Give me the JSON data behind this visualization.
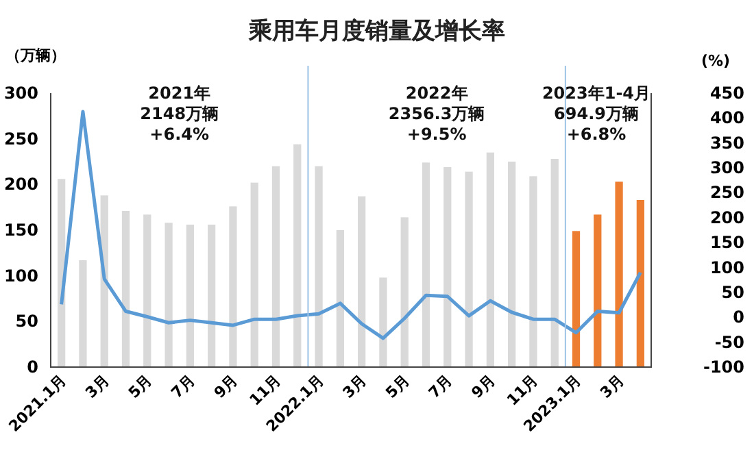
{
  "chart_data": {
    "type": "bar",
    "title": "乘用车月度销量及增长率",
    "ylabel": "（万辆）",
    "y2label": "(%)",
    "categories": [
      "2021.1月",
      null,
      "3月",
      null,
      "5月",
      null,
      "7月",
      null,
      "9月",
      null,
      "11月",
      null,
      "2022.1月",
      null,
      "3月",
      null,
      "5月",
      null,
      "7月",
      null,
      "9月",
      null,
      "11月",
      null,
      "2023.1月",
      null,
      "3月",
      null
    ],
    "series": [
      {
        "colors": [
          "#d9d9d9",
          "#d9d9d9",
          "#d9d9d9",
          "#d9d9d9",
          "#d9d9d9",
          "#d9d9d9",
          "#d9d9d9",
          "#d9d9d9",
          "#d9d9d9",
          "#d9d9d9",
          "#d9d9d9",
          "#d9d9d9",
          "#d9d9d9",
          "#d9d9d9",
          "#d9d9d9",
          "#d9d9d9",
          "#d9d9d9",
          "#d9d9d9",
          "#d9d9d9",
          "#d9d9d9",
          "#d9d9d9",
          "#d9d9d9",
          "#d9d9d9",
          "#d9d9d9",
          "#ed7d31",
          "#ed7d31",
          "#ed7d31",
          "#ed7d31"
        ],
        "values": [
          206,
          117,
          188,
          171,
          167,
          158,
          156,
          156,
          176,
          202,
          220,
          244,
          220,
          150,
          187,
          98,
          164,
          224,
          219,
          214,
          235,
          225,
          209,
          228,
          149,
          167,
          203,
          183
        ]
      },
      {
        "type": "line",
        "axis": "y2",
        "color": "#5b9bd5",
        "values": [
          26,
          413,
          77,
          12,
          1,
          -11,
          -6,
          -11,
          -16,
          -4,
          -4,
          3,
          7,
          28,
          -13,
          -42,
          -2,
          44,
          42,
          3,
          33,
          10,
          -4,
          -4,
          -31,
          12,
          9,
          90
        ]
      }
    ],
    "ylim": [
      0,
      300
    ],
    "yticks": [
      0,
      50,
      100,
      150,
      200,
      250,
      300
    ],
    "y2lim": [
      -100,
      450
    ],
    "y2ticks": [
      -100,
      -50,
      0,
      50,
      100,
      150,
      200,
      250,
      300,
      350,
      400,
      450
    ],
    "annotations": [
      "2021年\n2148万辆\n+6.4%",
      "2022年\n2356.3万辆\n+9.5%",
      "2023年1-4月\n694.9万辆\n+6.8%"
    ],
    "grid": false,
    "marker": "none",
    "line_style": "solid"
  }
}
